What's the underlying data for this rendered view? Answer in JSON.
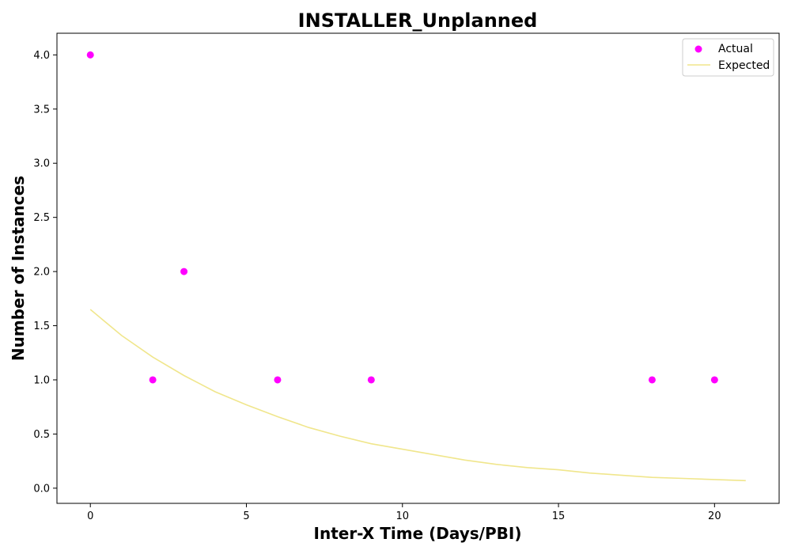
{
  "chart_data": {
    "type": "scatter",
    "title": "INSTALLER_Unplanned",
    "xlabel": "Inter-X Time (Days/PBI)",
    "ylabel": "Number of Instances",
    "xlim": [
      -1.07,
      22.07
    ],
    "ylim": [
      -0.14,
      4.2
    ],
    "xticks": [
      0,
      5,
      10,
      15,
      20
    ],
    "yticks": [
      0.0,
      0.5,
      1.0,
      1.5,
      2.0,
      2.5,
      3.0,
      3.5,
      4.0
    ],
    "grid": false,
    "legend": "top-right",
    "series": [
      {
        "name": "Actual",
        "kind": "scatter",
        "color": "#ff00ff",
        "x": [
          0,
          2,
          3,
          6,
          9,
          18,
          20
        ],
        "y": [
          4,
          1,
          2,
          1,
          1,
          1,
          1
        ]
      },
      {
        "name": "Expected",
        "kind": "line",
        "color": "#f0e68c",
        "x": [
          0,
          1,
          2,
          3,
          4,
          5,
          6,
          7,
          8,
          9,
          10,
          11,
          12,
          13,
          14,
          15,
          16,
          17,
          18,
          19,
          20,
          21
        ],
        "y": [
          1.65,
          1.41,
          1.21,
          1.04,
          0.89,
          0.77,
          0.66,
          0.56,
          0.48,
          0.41,
          0.36,
          0.31,
          0.26,
          0.22,
          0.19,
          0.17,
          0.14,
          0.12,
          0.1,
          0.09,
          0.08,
          0.07
        ]
      }
    ]
  }
}
